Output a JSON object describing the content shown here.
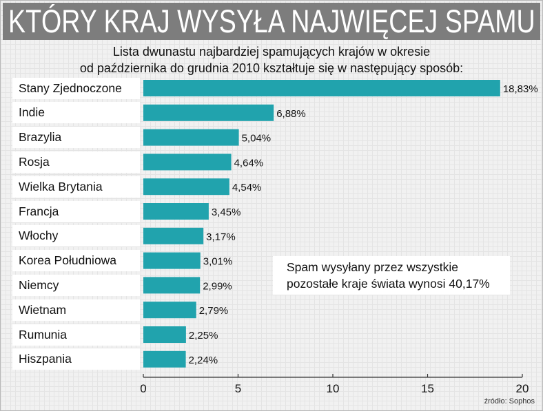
{
  "header": {
    "title": "KTÓRY KRAJ WYSYŁA NAJWIĘCEJ SPAMU",
    "subtitle_line1": "Lista dwunastu najbardziej spamujących krajów w okresie",
    "subtitle_line2": "od października do grudnia 2010 kształtuje się w następujący sposób:"
  },
  "note": {
    "line1": "Spam wysyłany przez wszystkie",
    "line2": "pozostałe kraje świata wynosi 40,17%"
  },
  "source": "źródło: Sophos",
  "colors": {
    "bar": "#21a3ad",
    "axis": "#333333"
  },
  "chart_data": {
    "type": "bar",
    "orientation": "horizontal",
    "title": "KTÓRY KRAJ WYSYŁA NAJWIĘCEJ SPAMU",
    "categories": [
      "Stany Zjednoczone",
      "Indie",
      "Brazylia",
      "Rosja",
      "Wielka Brytania",
      "Francja",
      "Włochy",
      "Korea Południowa",
      "Niemcy",
      "Wietnam",
      "Rumunia",
      "Hiszpania"
    ],
    "values": [
      18.83,
      6.88,
      5.04,
      4.64,
      4.54,
      3.45,
      3.17,
      3.01,
      2.99,
      2.79,
      2.25,
      2.24
    ],
    "value_labels": [
      "18,83%",
      "6,88%",
      "5,04%",
      "4,64%",
      "4,54%",
      "3,45%",
      "3,17%",
      "3,01%",
      "2,99%",
      "2,79%",
      "2,25%",
      "2,24%"
    ],
    "xlim": [
      0,
      20
    ],
    "xticks": [
      0,
      5,
      10,
      15,
      20
    ],
    "grid": false,
    "legend": "none"
  }
}
